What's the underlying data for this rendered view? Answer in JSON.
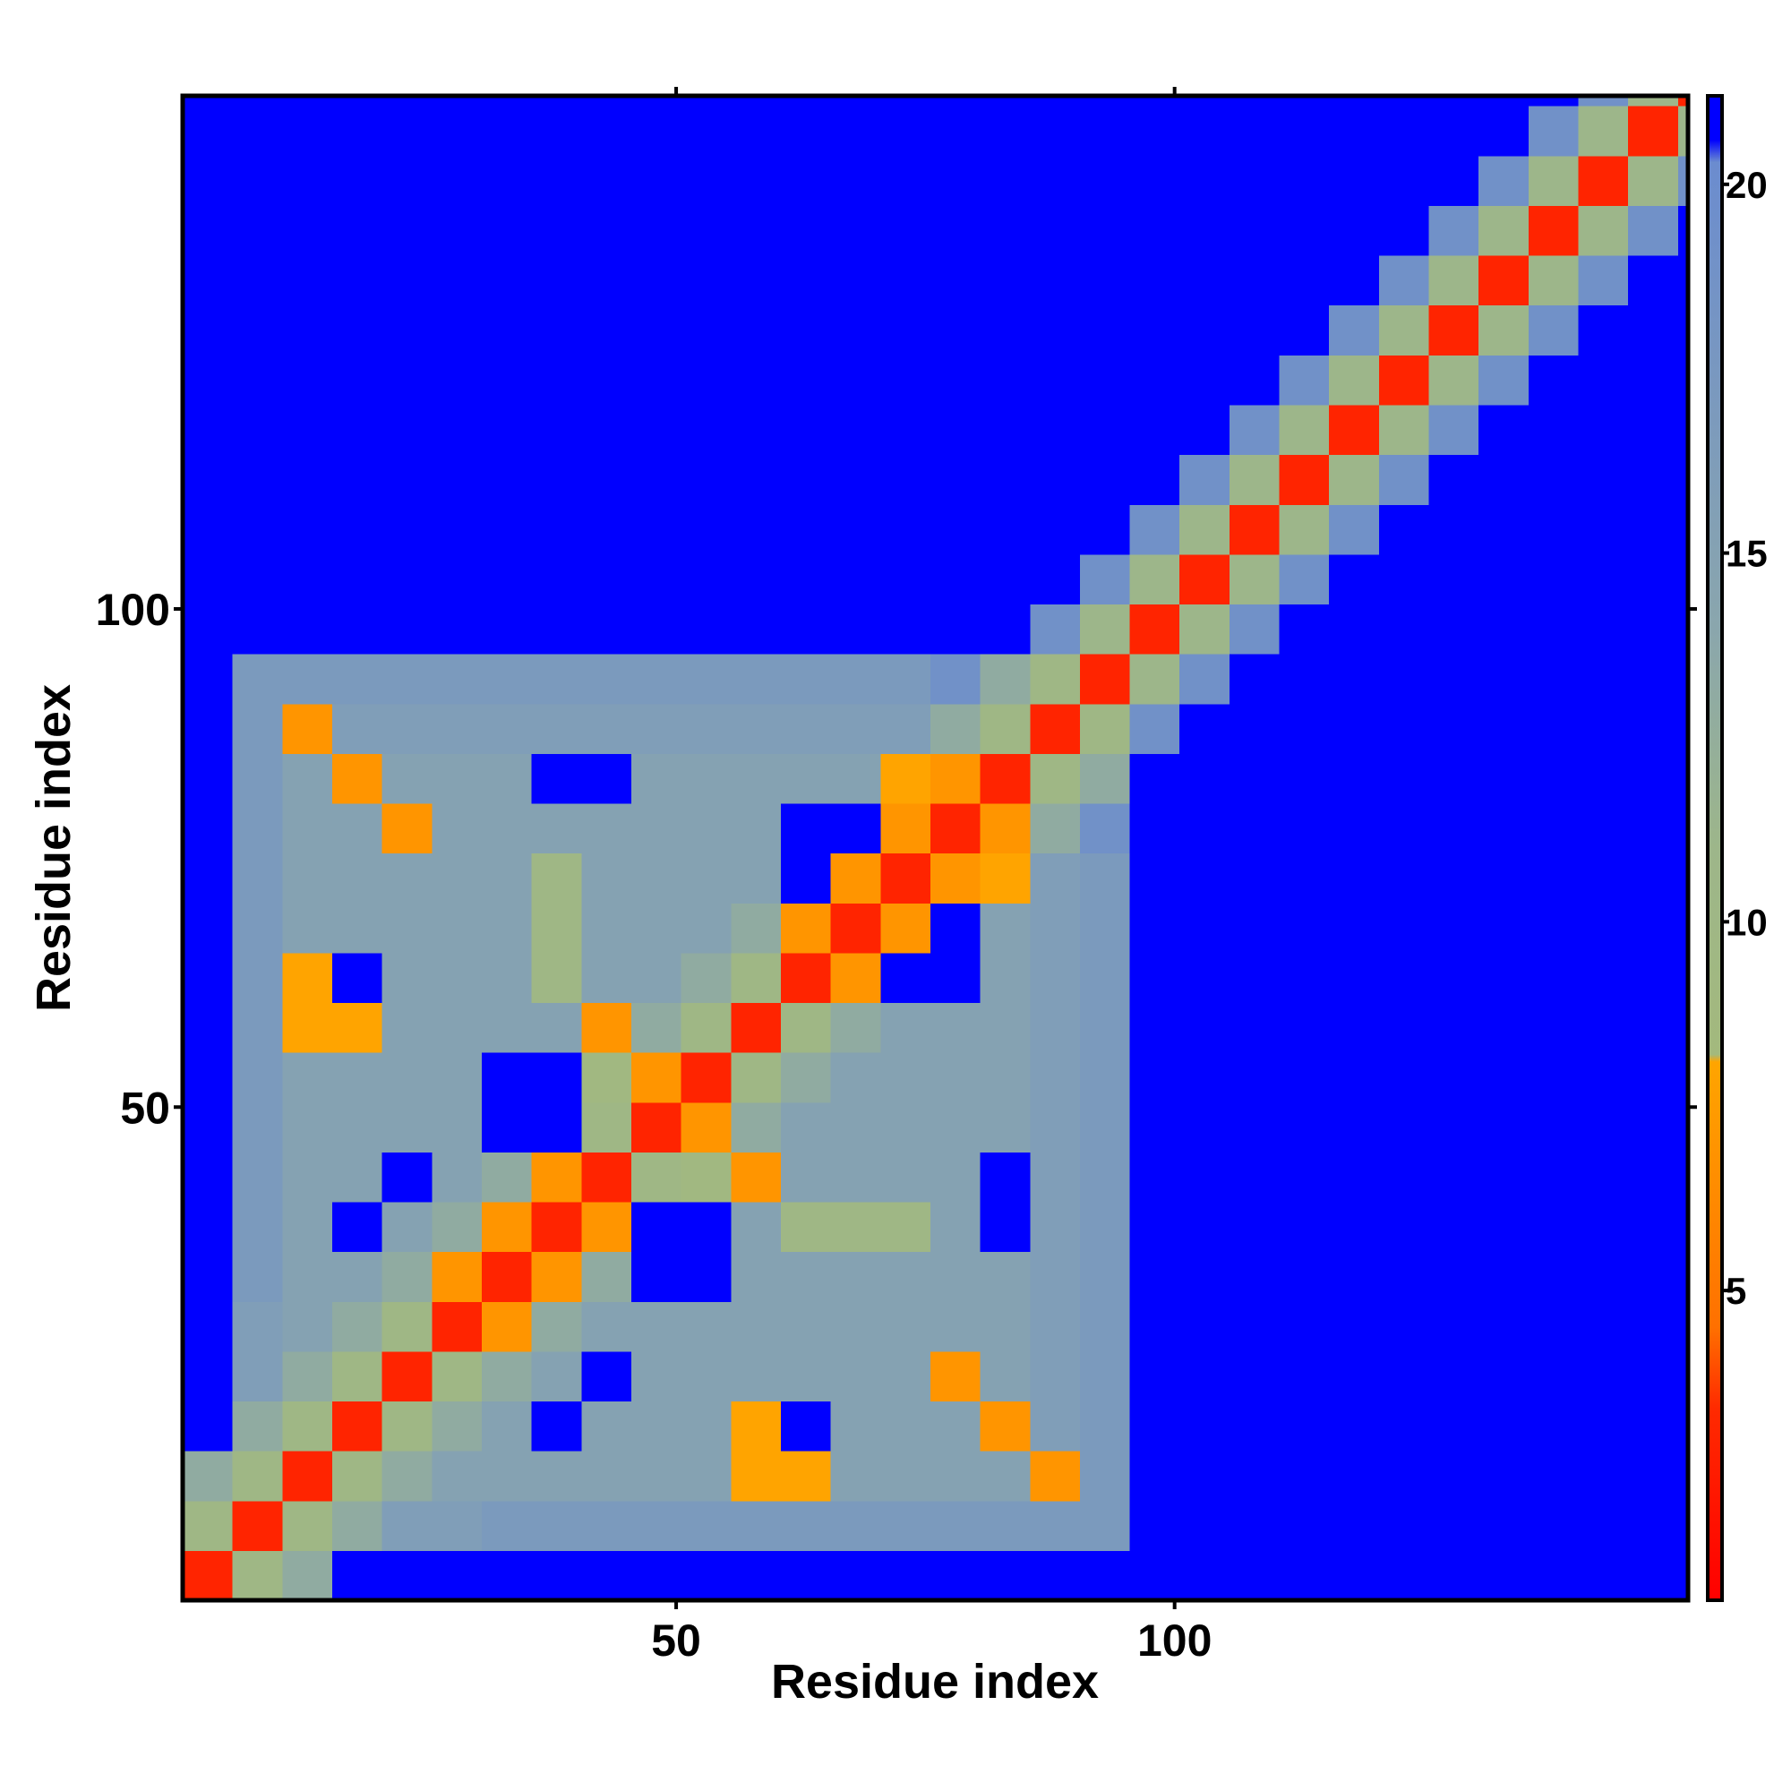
{
  "chart_data": {
    "type": "heatmap",
    "x_label": "Residue index",
    "y_label": "Residue index",
    "x_edges": [
      0.5,
      5.5,
      10.5,
      15.5,
      20.5,
      25.5,
      30.5,
      35.5,
      40.5,
      45.5,
      50.5,
      55.5,
      60.5,
      65.5,
      70.5,
      75.5,
      80.5,
      85.5,
      90.5,
      95.5,
      100.5,
      105.5,
      110.5,
      115.5,
      120.5,
      125.5,
      130.5,
      135.5,
      140.5,
      145.5,
      150.5,
      151.5
    ],
    "y_edges": [
      0.5,
      5.5,
      10.5,
      15.5,
      20.5,
      25.5,
      30.5,
      35.5,
      40.5,
      45.5,
      50.5,
      55.5,
      60.5,
      65.5,
      70.5,
      75.5,
      80.5,
      85.5,
      90.5,
      95.5,
      100.5,
      105.5,
      110.5,
      115.5,
      120.5,
      125.5,
      130.5,
      135.5,
      140.5,
      145.5,
      150.5,
      151.5
    ],
    "values": [
      [
        3,
        10,
        13,
        21,
        21,
        21,
        21,
        21,
        21,
        21,
        21,
        21,
        21,
        21,
        21,
        21,
        21,
        21,
        21,
        21,
        21,
        21,
        21,
        21,
        21,
        21,
        21,
        21,
        21,
        21,
        21
      ],
      [
        10,
        3,
        10,
        13,
        16,
        16,
        17,
        17,
        17,
        17,
        17,
        17,
        17,
        17,
        17,
        17,
        17,
        17,
        17,
        21,
        21,
        21,
        21,
        21,
        21,
        21,
        21,
        21,
        21,
        21,
        21
      ],
      [
        13,
        10,
        3,
        10,
        13,
        15,
        15,
        15,
        15,
        15,
        15,
        8,
        8,
        15,
        15,
        15,
        15,
        7,
        17,
        21,
        21,
        21,
        21,
        21,
        21,
        21,
        21,
        21,
        21,
        21,
        21
      ],
      [
        21,
        13,
        10,
        3,
        10,
        13,
        15,
        21,
        15,
        15,
        15,
        8,
        21,
        15,
        15,
        15,
        7,
        16,
        17,
        21,
        21,
        21,
        21,
        21,
        21,
        21,
        21,
        21,
        21,
        21,
        21
      ],
      [
        21,
        16,
        13,
        10,
        3,
        10,
        13,
        15,
        21,
        15,
        15,
        15,
        15,
        15,
        15,
        7,
        15,
        16,
        17,
        21,
        21,
        21,
        21,
        21,
        21,
        21,
        21,
        21,
        21,
        21,
        21
      ],
      [
        21,
        16,
        15,
        13,
        10,
        3,
        7,
        13,
        15,
        15,
        15,
        15,
        15,
        15,
        15,
        15,
        15,
        16,
        17,
        21,
        21,
        21,
        21,
        21,
        21,
        21,
        21,
        21,
        21,
        21,
        21
      ],
      [
        21,
        17,
        15,
        15,
        13,
        7,
        3,
        7,
        13,
        21,
        21,
        15,
        15,
        15,
        15,
        15,
        15,
        16,
        17,
        21,
        21,
        21,
        21,
        21,
        21,
        21,
        21,
        21,
        21,
        21,
        21
      ],
      [
        21,
        17,
        15,
        21,
        15,
        13,
        7,
        3,
        7,
        21,
        21,
        15,
        10,
        10,
        10,
        15,
        21,
        16,
        17,
        21,
        21,
        21,
        21,
        21,
        21,
        21,
        21,
        21,
        21,
        21,
        21
      ],
      [
        21,
        17,
        15,
        15,
        21,
        15,
        13,
        7,
        3,
        10,
        9,
        7,
        15,
        15,
        15,
        15,
        21,
        16,
        17,
        21,
        21,
        21,
        21,
        21,
        21,
        21,
        21,
        21,
        21,
        21,
        21
      ],
      [
        21,
        17,
        15,
        15,
        15,
        15,
        21,
        21,
        10,
        3,
        7,
        13,
        15,
        15,
        15,
        15,
        15,
        16,
        17,
        21,
        21,
        21,
        21,
        21,
        21,
        21,
        21,
        21,
        21,
        21,
        21
      ],
      [
        21,
        17,
        15,
        15,
        15,
        15,
        21,
        21,
        9,
        7,
        3,
        10,
        13,
        15,
        15,
        15,
        15,
        16,
        17,
        21,
        21,
        21,
        21,
        21,
        21,
        21,
        21,
        21,
        21,
        21,
        21
      ],
      [
        21,
        17,
        8,
        8,
        15,
        15,
        15,
        15,
        7,
        13,
        10,
        3,
        10,
        13,
        15,
        15,
        15,
        16,
        17,
        21,
        21,
        21,
        21,
        21,
        21,
        21,
        21,
        21,
        21,
        21,
        21
      ],
      [
        21,
        17,
        8,
        21,
        15,
        15,
        15,
        10,
        15,
        15,
        13,
        10,
        3,
        7,
        21,
        21,
        15,
        16,
        17,
        21,
        21,
        21,
        21,
        21,
        21,
        21,
        21,
        21,
        21,
        21,
        21
      ],
      [
        21,
        17,
        15,
        15,
        15,
        15,
        15,
        10,
        15,
        15,
        15,
        13,
        7,
        3,
        7,
        21,
        15,
        16,
        17,
        21,
        21,
        21,
        21,
        21,
        21,
        21,
        21,
        21,
        21,
        21,
        21
      ],
      [
        21,
        17,
        15,
        15,
        15,
        15,
        15,
        10,
        15,
        15,
        15,
        15,
        21,
        7,
        3,
        7,
        8,
        16,
        17,
        21,
        21,
        21,
        21,
        21,
        21,
        21,
        21,
        21,
        21,
        21,
        21
      ],
      [
        21,
        17,
        15,
        15,
        7,
        15,
        15,
        15,
        15,
        15,
        15,
        15,
        21,
        21,
        7,
        3,
        7,
        13,
        19,
        21,
        21,
        21,
        21,
        21,
        21,
        21,
        21,
        21,
        21,
        21,
        21
      ],
      [
        21,
        17,
        15,
        7,
        15,
        15,
        15,
        21,
        21,
        15,
        15,
        15,
        15,
        15,
        8,
        7,
        3,
        10,
        13,
        21,
        21,
        21,
        21,
        21,
        21,
        21,
        21,
        21,
        21,
        21,
        21
      ],
      [
        21,
        17,
        7,
        16,
        16,
        16,
        16,
        16,
        16,
        16,
        16,
        16,
        16,
        16,
        16,
        13,
        10,
        3,
        10,
        19,
        21,
        21,
        21,
        21,
        21,
        21,
        21,
        21,
        21,
        21,
        21
      ],
      [
        21,
        17,
        17,
        17,
        17,
        17,
        17,
        17,
        17,
        17,
        17,
        17,
        17,
        17,
        17,
        19,
        13,
        10,
        3,
        11,
        19,
        21,
        21,
        21,
        21,
        21,
        21,
        21,
        21,
        21,
        21
      ],
      [
        21,
        21,
        21,
        21,
        21,
        21,
        21,
        21,
        21,
        21,
        21,
        21,
        21,
        21,
        21,
        21,
        21,
        19,
        11,
        3,
        11,
        19,
        21,
        21,
        21,
        21,
        21,
        21,
        21,
        21,
        21
      ],
      [
        21,
        21,
        21,
        21,
        21,
        21,
        21,
        21,
        21,
        21,
        21,
        21,
        21,
        21,
        21,
        21,
        21,
        21,
        19,
        11,
        3,
        11,
        19,
        21,
        21,
        21,
        21,
        21,
        21,
        21,
        21
      ],
      [
        21,
        21,
        21,
        21,
        21,
        21,
        21,
        21,
        21,
        21,
        21,
        21,
        21,
        21,
        21,
        21,
        21,
        21,
        21,
        19,
        11,
        3,
        11,
        19,
        21,
        21,
        21,
        21,
        21,
        21,
        21
      ],
      [
        21,
        21,
        21,
        21,
        21,
        21,
        21,
        21,
        21,
        21,
        21,
        21,
        21,
        21,
        21,
        21,
        21,
        21,
        21,
        21,
        19,
        11,
        3,
        11,
        19,
        21,
        21,
        21,
        21,
        21,
        21
      ],
      [
        21,
        21,
        21,
        21,
        21,
        21,
        21,
        21,
        21,
        21,
        21,
        21,
        21,
        21,
        21,
        21,
        21,
        21,
        21,
        21,
        21,
        19,
        11,
        3,
        11,
        19,
        21,
        21,
        21,
        21,
        21
      ],
      [
        21,
        21,
        21,
        21,
        21,
        21,
        21,
        21,
        21,
        21,
        21,
        21,
        21,
        21,
        21,
        21,
        21,
        21,
        21,
        21,
        21,
        21,
        19,
        11,
        3,
        11,
        19,
        21,
        21,
        21,
        21
      ],
      [
        21,
        21,
        21,
        21,
        21,
        21,
        21,
        21,
        21,
        21,
        21,
        21,
        21,
        21,
        21,
        21,
        21,
        21,
        21,
        21,
        21,
        21,
        21,
        19,
        11,
        3,
        11,
        19,
        21,
        21,
        21
      ],
      [
        21,
        21,
        21,
        21,
        21,
        21,
        21,
        21,
        21,
        21,
        21,
        21,
        21,
        21,
        21,
        21,
        21,
        21,
        21,
        21,
        21,
        21,
        21,
        21,
        19,
        11,
        3,
        11,
        19,
        21,
        21
      ],
      [
        21,
        21,
        21,
        21,
        21,
        21,
        21,
        21,
        21,
        21,
        21,
        21,
        21,
        21,
        21,
        21,
        21,
        21,
        21,
        21,
        21,
        21,
        21,
        21,
        21,
        19,
        11,
        3,
        11,
        19,
        21
      ],
      [
        21,
        21,
        21,
        21,
        21,
        21,
        21,
        21,
        21,
        21,
        21,
        21,
        21,
        21,
        21,
        21,
        21,
        21,
        21,
        21,
        21,
        21,
        21,
        21,
        21,
        21,
        19,
        11,
        3,
        11,
        19
      ],
      [
        21,
        21,
        21,
        21,
        21,
        21,
        21,
        21,
        21,
        21,
        21,
        21,
        21,
        21,
        21,
        21,
        21,
        21,
        21,
        21,
        21,
        21,
        21,
        21,
        21,
        21,
        21,
        19,
        11,
        3,
        11
      ],
      [
        21,
        21,
        21,
        21,
        21,
        21,
        21,
        21,
        21,
        21,
        21,
        21,
        21,
        21,
        21,
        21,
        21,
        21,
        21,
        21,
        21,
        21,
        21,
        21,
        21,
        21,
        21,
        21,
        19,
        11,
        3
      ]
    ],
    "xlim": [
      0.5,
      151.5
    ],
    "ylim": [
      0.5,
      151.5
    ],
    "xticks": [
      50,
      100
    ],
    "yticks": [
      50,
      100
    ],
    "zlim": [
      0.8,
      21.2
    ],
    "zticks": [
      5,
      10,
      15,
      20
    ],
    "colorscale": [
      [
        0.8,
        "#ff0000"
      ],
      [
        3.4,
        "#ff2a00"
      ],
      [
        4.5,
        "#ff7000"
      ],
      [
        8.1,
        "#ffa500"
      ],
      [
        8.2,
        "#a3b97d"
      ],
      [
        11,
        "#9db68a"
      ],
      [
        14,
        "#8aa6ad"
      ],
      [
        20.3,
        "#6b8ccf"
      ],
      [
        20.6,
        "#0000ff"
      ],
      [
        21.2,
        "#0000ff"
      ]
    ]
  }
}
